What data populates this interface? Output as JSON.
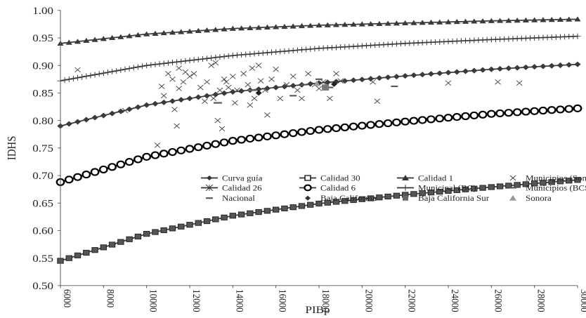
{
  "chart_data": {
    "type": "line",
    "xlabel": "PIBp",
    "ylabel": "IDHS",
    "xlim": [
      6000,
      30000
    ],
    "ylim": [
      0.5,
      1.0
    ],
    "x_ticks": [
      "6000",
      "8000",
      "10000",
      "12000",
      "14000",
      "16000",
      "18000",
      "20000",
      "22000",
      "24000",
      "26000",
      "28000",
      "30000"
    ],
    "y_ticks": [
      "0.50",
      "0.55",
      "0.60",
      "0.65",
      "0.70",
      "0.75",
      "0.80",
      "0.85",
      "0.90",
      "0.95",
      "1.00"
    ],
    "x_step": 400,
    "series": [
      {
        "name": "Calidad 1",
        "marker": "triangle",
        "color": "#3a3a3a",
        "values": {
          "6000": 0.94,
          "10000": 0.957,
          "14000": 0.967,
          "18000": 0.973,
          "22000": 0.977,
          "26000": 0.981,
          "30000": 0.984
        }
      },
      {
        "name": "Municipal (BC)",
        "marker": "plus",
        "color": "#3a3a3a",
        "values": {
          "6000": 0.872,
          "10000": 0.9,
          "14000": 0.918,
          "18000": 0.931,
          "22000": 0.94,
          "26000": 0.947,
          "30000": 0.953
        }
      },
      {
        "name": "Curva guía",
        "marker": "diamond",
        "color": "#3a3a3a",
        "values": {
          "6000": 0.79,
          "10000": 0.828,
          "14000": 0.852,
          "18000": 0.868,
          "22000": 0.881,
          "26000": 0.893,
          "30000": 0.902
        }
      },
      {
        "name": "Calidad 6",
        "marker": "circle",
        "color": "#000000",
        "values": {
          "6000": 0.688,
          "10000": 0.734,
          "14000": 0.763,
          "18000": 0.783,
          "22000": 0.798,
          "26000": 0.812,
          "30000": 0.822
        }
      },
      {
        "name": "Calidad 30",
        "marker": "square",
        "color": "#3a3a3a",
        "values": {
          "6000": 0.545,
          "10000": 0.594,
          "14000": 0.627,
          "18000": 0.649,
          "22000": 0.665,
          "26000": 0.679,
          "30000": 0.692
        }
      }
    ],
    "scatter_son": [
      [
        6800,
        0.892
      ],
      [
        9000,
        0.818
      ],
      [
        10500,
        0.755
      ],
      [
        10700,
        0.862
      ],
      [
        10800,
        0.845
      ],
      [
        11000,
        0.885
      ],
      [
        11200,
        0.875
      ],
      [
        11300,
        0.82
      ],
      [
        11400,
        0.79
      ],
      [
        11500,
        0.858
      ],
      [
        11500,
        0.895
      ],
      [
        11700,
        0.87
      ],
      [
        11800,
        0.888
      ],
      [
        12000,
        0.88
      ],
      [
        12200,
        0.885
      ],
      [
        12500,
        0.86
      ],
      [
        12700,
        0.835
      ],
      [
        12800,
        0.87
      ],
      [
        13000,
        0.9
      ],
      [
        13100,
        0.84
      ],
      [
        13200,
        0.905
      ],
      [
        13300,
        0.8
      ],
      [
        13400,
        0.855
      ],
      [
        13500,
        0.785
      ],
      [
        13600,
        0.875
      ],
      [
        13700,
        0.87
      ],
      [
        13800,
        0.86
      ],
      [
        14000,
        0.88
      ],
      [
        14100,
        0.832
      ],
      [
        14200,
        0.855
      ],
      [
        14500,
        0.885
      ],
      [
        14700,
        0.865
      ],
      [
        14800,
        0.828
      ],
      [
        14900,
        0.895
      ],
      [
        15000,
        0.84
      ],
      [
        15200,
        0.9
      ],
      [
        15300,
        0.872
      ],
      [
        15500,
        0.855
      ],
      [
        15600,
        0.81
      ],
      [
        15800,
        0.875
      ],
      [
        16000,
        0.893
      ],
      [
        16200,
        0.84
      ],
      [
        16500,
        0.865
      ],
      [
        16800,
        0.88
      ],
      [
        17000,
        0.855
      ],
      [
        17200,
        0.84
      ],
      [
        17500,
        0.885
      ],
      [
        17800,
        0.865
      ],
      [
        18000,
        0.858
      ],
      [
        18200,
        0.87
      ],
      [
        18500,
        0.84
      ],
      [
        18800,
        0.885
      ],
      [
        19000,
        0.872
      ],
      [
        20700,
        0.835
      ],
      [
        20500,
        0.87
      ],
      [
        24000,
        0.868
      ],
      [
        26300,
        0.87
      ],
      [
        27300,
        0.868
      ]
    ],
    "scatter_bcs": [
      [
        16800,
        0.845
      ],
      [
        17300,
        0.865
      ],
      [
        18000,
        0.875
      ],
      [
        18300,
        0.86
      ],
      [
        18500,
        0.86
      ],
      [
        21500,
        0.862
      ]
    ],
    "nacional": [
      [
        13300,
        0.832
      ],
      [
        14900,
        0.855
      ]
    ],
    "baja_california": [
      [
        15200,
        0.85
      ],
      [
        18700,
        0.866
      ]
    ],
    "baja_california_sur": [
      [
        18300,
        0.86
      ]
    ],
    "sonora": [
      [
        17900,
        0.867
      ]
    ],
    "legend": [
      {
        "label": "Curva guía",
        "marker": "diamond-line"
      },
      {
        "label": "Calidad 30",
        "marker": "square-line"
      },
      {
        "label": "Calidad 1",
        "marker": "triangle-line"
      },
      {
        "label": "Municipios (Son)",
        "marker": "x"
      },
      {
        "label": "Calidad 26",
        "marker": "asterisk-line"
      },
      {
        "label": "Calidad 6",
        "marker": "circle-line"
      },
      {
        "label": "Municipal (BC)",
        "marker": "plus-line"
      },
      {
        "label": "Municipios (BCS)",
        "marker": "dash"
      },
      {
        "label": "Nacional",
        "marker": "dash"
      },
      {
        "label": "Baja California",
        "marker": "diamond"
      },
      {
        "label": "Baja California Sur",
        "marker": "square"
      },
      {
        "label": "Sonora",
        "marker": "triangle-gray"
      }
    ]
  }
}
